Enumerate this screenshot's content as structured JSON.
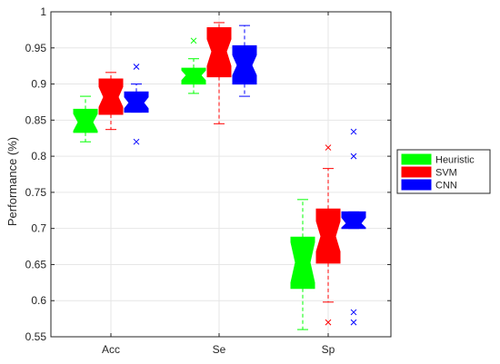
{
  "chart_data": {
    "type": "box",
    "title": "",
    "xlabel": "",
    "ylabel": "Performance (%)",
    "ylim": [
      0.55,
      1.0
    ],
    "yticks": [
      0.55,
      0.6,
      0.65,
      0.7,
      0.75,
      0.8,
      0.85,
      0.9,
      0.95,
      1
    ],
    "ytick_labels": [
      "0.55",
      "0.6",
      "0.65",
      "0.7",
      "0.75",
      "0.8",
      "0.85",
      "0.9",
      "0.95",
      "1"
    ],
    "categories": [
      "Acc",
      "Se",
      "Sp"
    ],
    "grid": true,
    "legend_position": "outside-right",
    "notched": true,
    "series": [
      {
        "name": "Heuristic",
        "color": "#00ff00",
        "boxes": [
          {
            "q1": 0.833,
            "median": 0.847,
            "q3": 0.865,
            "notch_low": 0.835,
            "notch_high": 0.859,
            "whisker_low": 0.82,
            "whisker_high": 0.883,
            "outliers": []
          },
          {
            "q1": 0.9,
            "median": 0.912,
            "q3": 0.922,
            "notch_low": 0.905,
            "notch_high": 0.919,
            "whisker_low": 0.887,
            "whisker_high": 0.935,
            "outliers": [
              0.96
            ]
          },
          {
            "q1": 0.617,
            "median": 0.653,
            "q3": 0.688,
            "notch_low": 0.625,
            "notch_high": 0.681,
            "whisker_low": 0.56,
            "whisker_high": 0.74,
            "outliers": []
          }
        ]
      },
      {
        "name": "SVM",
        "color": "#ff0000",
        "boxes": [
          {
            "q1": 0.858,
            "median": 0.882,
            "q3": 0.907,
            "notch_low": 0.868,
            "notch_high": 0.896,
            "whisker_low": 0.837,
            "whisker_high": 0.916,
            "outliers": []
          },
          {
            "q1": 0.91,
            "median": 0.945,
            "q3": 0.978,
            "notch_low": 0.925,
            "notch_high": 0.962,
            "whisker_low": 0.845,
            "whisker_high": 0.985,
            "outliers": []
          },
          {
            "q1": 0.652,
            "median": 0.689,
            "q3": 0.727,
            "notch_low": 0.668,
            "notch_high": 0.71,
            "whisker_low": 0.598,
            "whisker_high": 0.783,
            "outliers": [
              0.812,
              0.57
            ]
          }
        ]
      },
      {
        "name": "CNN",
        "color": "#0000ff",
        "boxes": [
          {
            "q1": 0.861,
            "median": 0.874,
            "q3": 0.889,
            "notch_low": 0.866,
            "notch_high": 0.882,
            "whisker_low": 0.861,
            "whisker_high": 0.9,
            "outliers": [
              0.924,
              0.82
            ]
          },
          {
            "q1": 0.9,
            "median": 0.926,
            "q3": 0.953,
            "notch_low": 0.912,
            "notch_high": 0.94,
            "whisker_low": 0.883,
            "whisker_high": 0.981,
            "outliers": []
          },
          {
            "q1": 0.7,
            "median": 0.707,
            "q3": 0.723,
            "notch_low": 0.701,
            "notch_high": 0.715,
            "whisker_low": 0.7,
            "whisker_high": 0.723,
            "outliers": [
              0.834,
              0.8,
              0.584,
              0.57
            ]
          }
        ]
      }
    ]
  }
}
